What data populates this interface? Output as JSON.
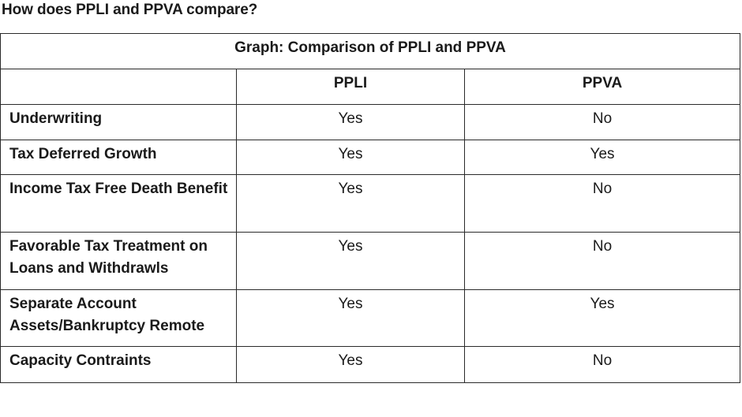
{
  "page": {
    "heading": "How does PPLI and PPVA compare?"
  },
  "table": {
    "caption": "Graph: Comparison of PPLI and PPVA",
    "columns": [
      "",
      "PPLI",
      "PPVA"
    ],
    "rows": [
      {
        "label": "Underwriting",
        "ppli": "Yes",
        "ppva": "No"
      },
      {
        "label": "Tax Deferred Growth",
        "ppli": "Yes",
        "ppva": "Yes"
      },
      {
        "label": "Income Tax Free Death Benefit",
        "ppli": "Yes",
        "ppva": "No"
      },
      {
        "label": "Favorable Tax Treatment on Loans and Withdrawls",
        "ppli": "Yes",
        "ppva": "No"
      },
      {
        "label": "Separate Account Assets/Bankruptcy Remote",
        "ppli": "Yes",
        "ppva": "Yes"
      },
      {
        "label": "Capacity Contraints",
        "ppli": "Yes",
        "ppva": "No"
      }
    ]
  }
}
